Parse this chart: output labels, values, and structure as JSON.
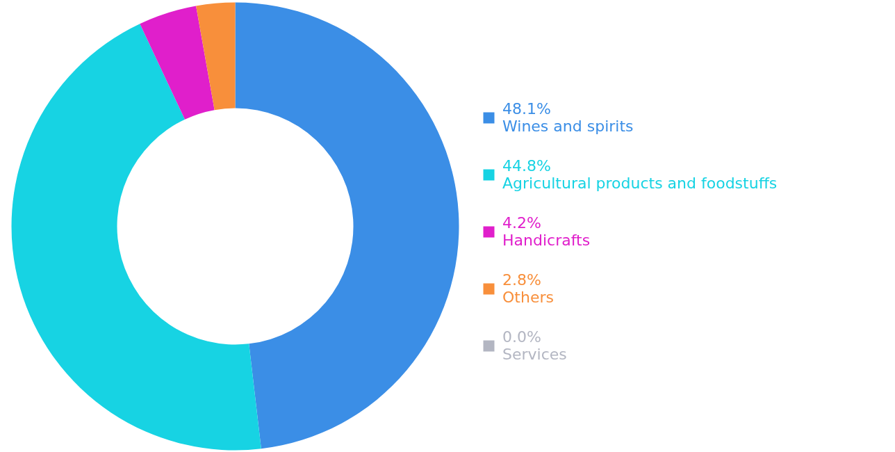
{
  "chart_data": {
    "type": "donut",
    "categories": [
      "Wines and spirits",
      "Agricultural products and foodstuffs",
      "Handicrafts",
      "Others",
      "Services"
    ],
    "values": [
      48.1,
      44.8,
      4.2,
      2.8,
      0.0
    ],
    "value_labels": [
      "48.1%",
      "44.8%",
      "4.2%",
      "2.8%",
      "0.0%"
    ],
    "colors": [
      "#3b8ee6",
      "#17d3e3",
      "#e01fcb",
      "#f88f3b",
      "#b3b6c2"
    ],
    "legend": "right"
  }
}
